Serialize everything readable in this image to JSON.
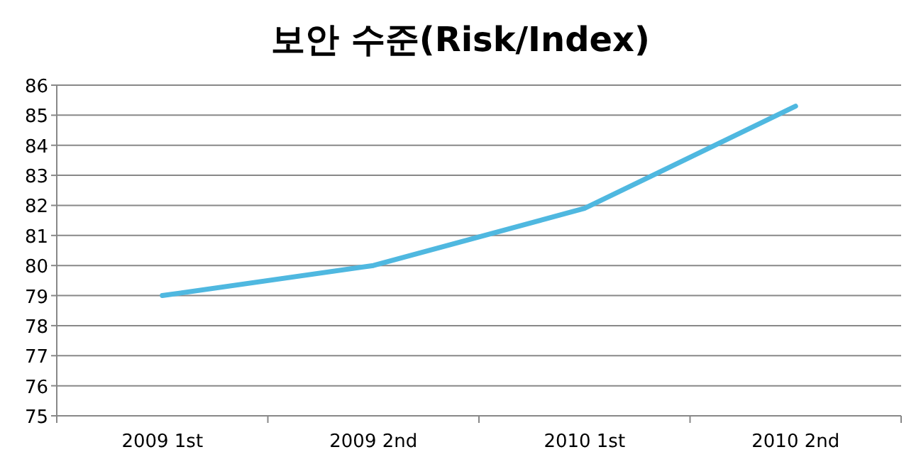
{
  "chart_data": {
    "type": "line",
    "title": "보안 수준(Risk/Index)",
    "categories": [
      "2009 1st",
      "2009 2nd",
      "2010 1st",
      "2010 2nd"
    ],
    "series": [
      {
        "color": "#4fb8e0",
        "values": [
          79,
          80,
          81.9,
          85.3
        ]
      }
    ],
    "ylim": [
      75,
      86
    ],
    "yticks": [
      75,
      76,
      77,
      78,
      79,
      80,
      81,
      82,
      83,
      84,
      85,
      86
    ],
    "grid": "y",
    "marker": "none",
    "line_style": "solid"
  }
}
